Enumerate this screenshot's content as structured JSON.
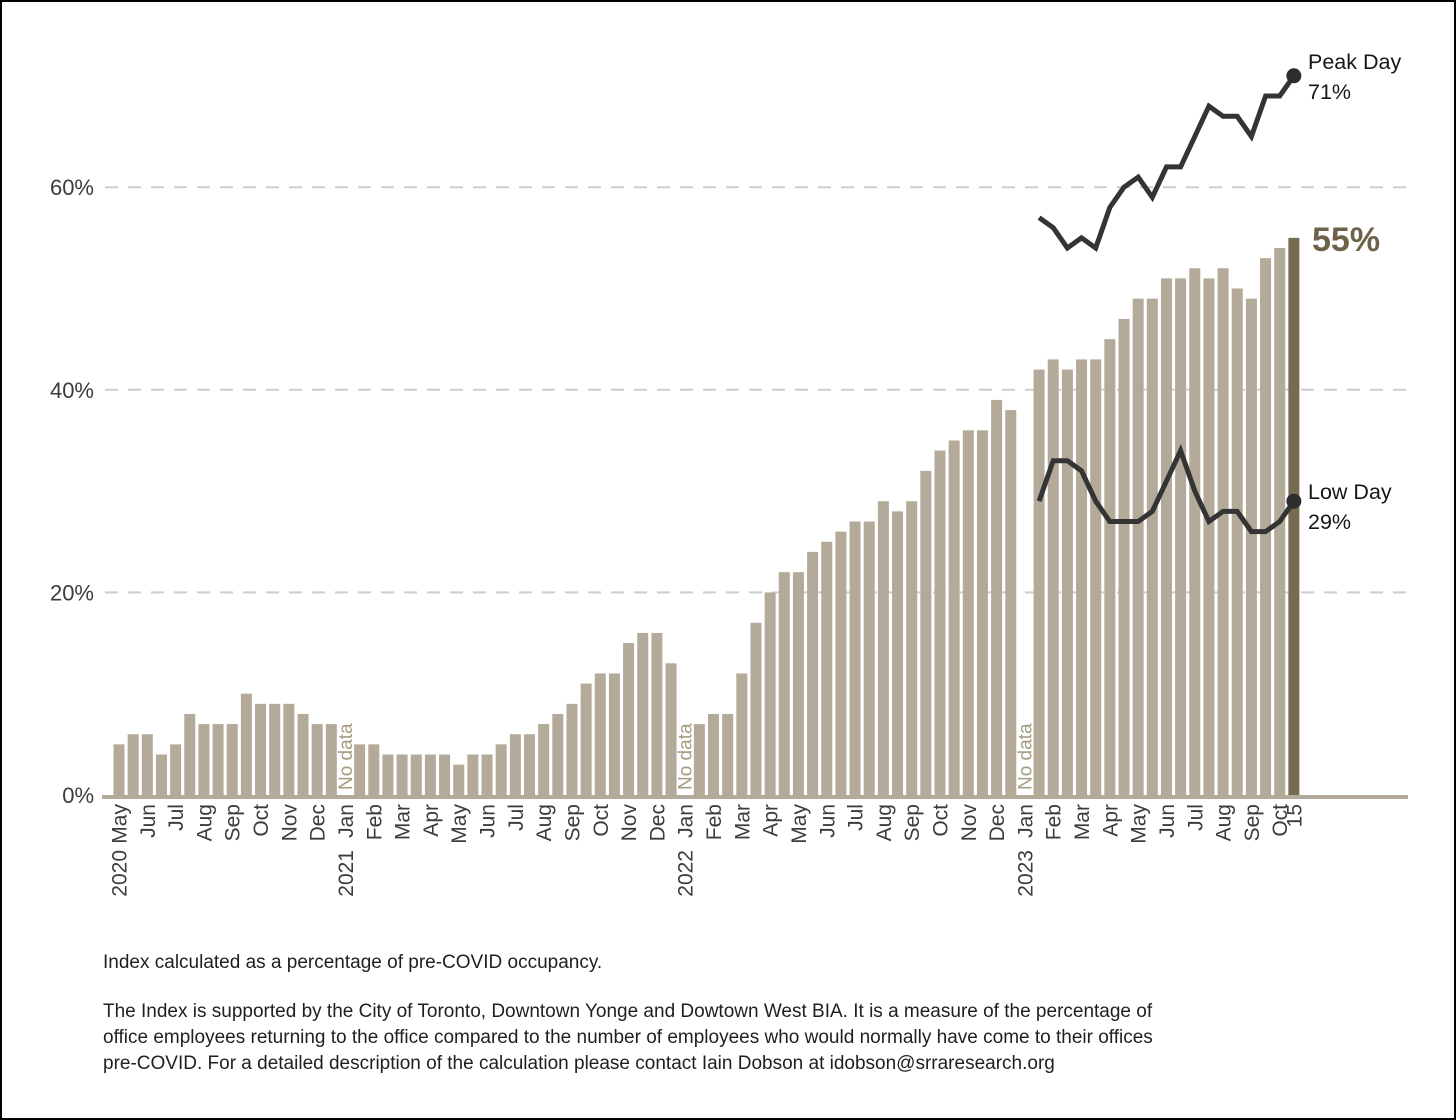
{
  "annotations": {
    "peak_label": "Peak Day",
    "peak_value": "71%",
    "low_label": "Low Day",
    "low_value": "29%",
    "final_value": "55%"
  },
  "footer": {
    "note": "Index calculated as a percentage of pre-COVID occupancy.",
    "description_lines": [
      "The Index is supported by the City of Toronto, Downtown Yonge and Dowtown West BIA. It is a measure of the percentage of",
      "office employees returning to the office compared to the number of employees who would normally have come to their offices",
      "pre-COVID. For a detailed description of the calculation please contact Iain Dobson at idobson@srraresearch.org"
    ]
  },
  "chart_data": {
    "type": "bar",
    "unit": "%",
    "grid": "dashed-horizontal",
    "ylim": [
      0,
      75
    ],
    "y_ticks": [
      {
        "value": 0,
        "label": "0%"
      },
      {
        "value": 20,
        "label": "20%"
      },
      {
        "value": 40,
        "label": "40%"
      },
      {
        "value": 60,
        "label": "60%"
      }
    ],
    "no_data_label": "No data",
    "colors": {
      "bar": "#b3aa99",
      "final_bar": "#776b52",
      "line": "#343434",
      "dot": "#2d2d2d",
      "grid": "#cdcdcd",
      "axis": "#b3aa99",
      "tick_text": "#3c3c3c",
      "no_data_text": "#a69c80"
    },
    "bars": [
      5,
      6,
      6,
      4,
      5,
      8,
      7,
      7,
      7,
      10,
      9,
      9,
      9,
      8,
      7,
      7,
      null,
      5,
      5,
      4,
      4,
      4,
      4,
      4,
      3,
      4,
      4,
      5,
      6,
      6,
      7,
      8,
      9,
      11,
      12,
      12,
      15,
      16,
      16,
      13,
      null,
      7,
      8,
      8,
      12,
      17,
      20,
      22,
      22,
      24,
      25,
      26,
      27,
      27,
      29,
      28,
      29,
      32,
      34,
      35,
      36,
      36,
      39,
      38,
      null,
      42,
      43,
      42,
      43,
      43,
      45,
      47,
      49,
      49,
      51,
      51,
      52,
      51,
      52,
      50,
      49,
      53,
      54,
      55
    ],
    "x_labels": [
      {
        "index": 0,
        "label": "May",
        "year": "2020"
      },
      {
        "index": 2,
        "label": "Jun"
      },
      {
        "index": 4,
        "label": "Jul"
      },
      {
        "index": 6,
        "label": "Aug"
      },
      {
        "index": 8,
        "label": "Sep"
      },
      {
        "index": 10,
        "label": "Oct"
      },
      {
        "index": 12,
        "label": "Nov"
      },
      {
        "index": 14,
        "label": "Dec"
      },
      {
        "index": 16,
        "label": "Jan",
        "year": "2021"
      },
      {
        "index": 18,
        "label": "Feb"
      },
      {
        "index": 20,
        "label": "Mar"
      },
      {
        "index": 22,
        "label": "Apr"
      },
      {
        "index": 24,
        "label": "May"
      },
      {
        "index": 26,
        "label": "Jun"
      },
      {
        "index": 28,
        "label": "Jul"
      },
      {
        "index": 30,
        "label": "Aug"
      },
      {
        "index": 32,
        "label": "Sep"
      },
      {
        "index": 34,
        "label": "Oct"
      },
      {
        "index": 36,
        "label": "Nov"
      },
      {
        "index": 38,
        "label": "Dec"
      },
      {
        "index": 40,
        "label": "Jan",
        "year": "2022"
      },
      {
        "index": 42,
        "label": "Feb"
      },
      {
        "index": 44,
        "label": "Mar"
      },
      {
        "index": 46,
        "label": "Apr"
      },
      {
        "index": 48,
        "label": "May"
      },
      {
        "index": 50,
        "label": "Jun"
      },
      {
        "index": 52,
        "label": "Jul"
      },
      {
        "index": 54,
        "label": "Aug"
      },
      {
        "index": 56,
        "label": "Sep"
      },
      {
        "index": 58,
        "label": "Oct"
      },
      {
        "index": 60,
        "label": "Nov"
      },
      {
        "index": 62,
        "label": "Dec"
      },
      {
        "index": 64,
        "label": "Jan",
        "year": "2023"
      },
      {
        "index": 66,
        "label": "Feb"
      },
      {
        "index": 68,
        "label": "Mar"
      },
      {
        "index": 70,
        "label": "Apr"
      },
      {
        "index": 72,
        "label": "May"
      },
      {
        "index": 74,
        "label": "Jun"
      },
      {
        "index": 76,
        "label": "Jul"
      },
      {
        "index": 78,
        "label": "Aug"
      },
      {
        "index": 80,
        "label": "Sep"
      },
      {
        "index": 82,
        "label": "Oct"
      },
      {
        "index": 83,
        "label": "15"
      }
    ],
    "lines": [
      {
        "name": "Peak Day",
        "start_index": 65,
        "values": [
          57,
          56,
          54,
          55,
          54,
          58,
          60,
          61,
          59,
          62,
          62,
          65,
          68,
          67,
          67,
          65,
          69,
          69,
          71
        ]
      },
      {
        "name": "Low Day",
        "start_index": 65,
        "values": [
          29,
          33,
          33,
          32,
          29,
          27,
          27,
          27,
          28,
          31,
          34,
          30,
          27,
          28,
          28,
          26,
          26,
          27,
          29
        ]
      }
    ]
  }
}
